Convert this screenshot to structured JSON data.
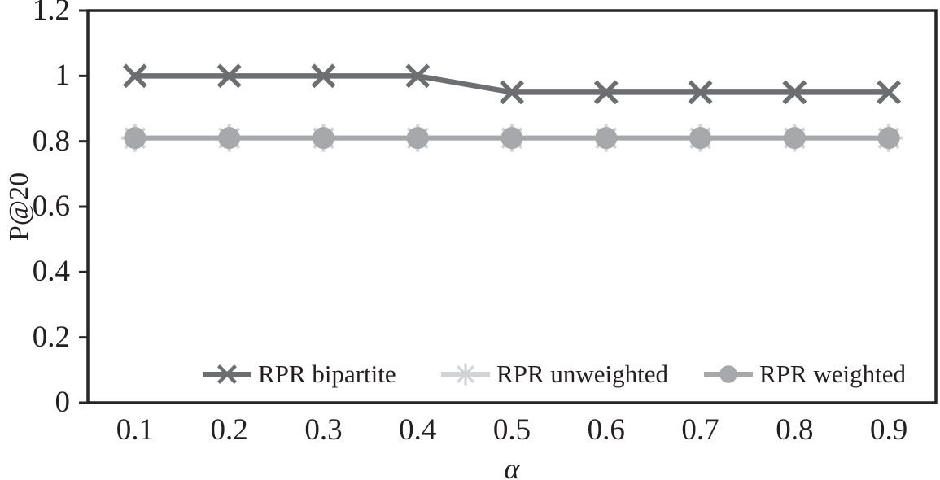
{
  "colors": {
    "frame": "#272525",
    "text": "#231f20",
    "background": "#ffffff",
    "series_bipartite": "#6d6e71",
    "series_unweighted": "#d1d3d4",
    "series_weighted": "#a6a8ab"
  },
  "chart_data": {
    "type": "line",
    "title": "",
    "xlabel": "α",
    "ylabel": "P@20",
    "categories": [
      "0.1",
      "0.2",
      "0.3",
      "0.4",
      "0.5",
      "0.6",
      "0.7",
      "0.8",
      "0.9"
    ],
    "ylim": [
      0,
      1.2
    ],
    "yticks": [
      {
        "value": 0,
        "label": "0"
      },
      {
        "value": 0.2,
        "label": "0.2"
      },
      {
        "value": 0.4,
        "label": "0.4"
      },
      {
        "value": 0.6,
        "label": "0.6"
      },
      {
        "value": 0.8,
        "label": "0.8"
      },
      {
        "value": 1,
        "label": "1"
      },
      {
        "value": 1.2,
        "label": "1.2"
      }
    ],
    "grid": false,
    "legend_position": "bottom-inside",
    "series": [
      {
        "name": "RPR bipartite",
        "marker": "x",
        "color": "#6d6e71",
        "line_width": 6.5,
        "values": [
          1,
          1,
          1,
          1,
          0.95,
          0.95,
          0.95,
          0.95,
          0.95
        ]
      },
      {
        "name": "RPR unweighted",
        "marker": "asterisk",
        "color": "#d1d3d4",
        "line_width": 6,
        "values": [
          0.81,
          0.81,
          0.81,
          0.81,
          0.81,
          0.81,
          0.81,
          0.81,
          0.81
        ]
      },
      {
        "name": "RPR weighted",
        "marker": "circle",
        "color": "#a6a8ab",
        "line_width": 6,
        "values": [
          0.81,
          0.81,
          0.81,
          0.81,
          0.81,
          0.81,
          0.81,
          0.81,
          0.81
        ]
      }
    ],
    "draw_order": [
      1,
      2,
      0
    ]
  }
}
